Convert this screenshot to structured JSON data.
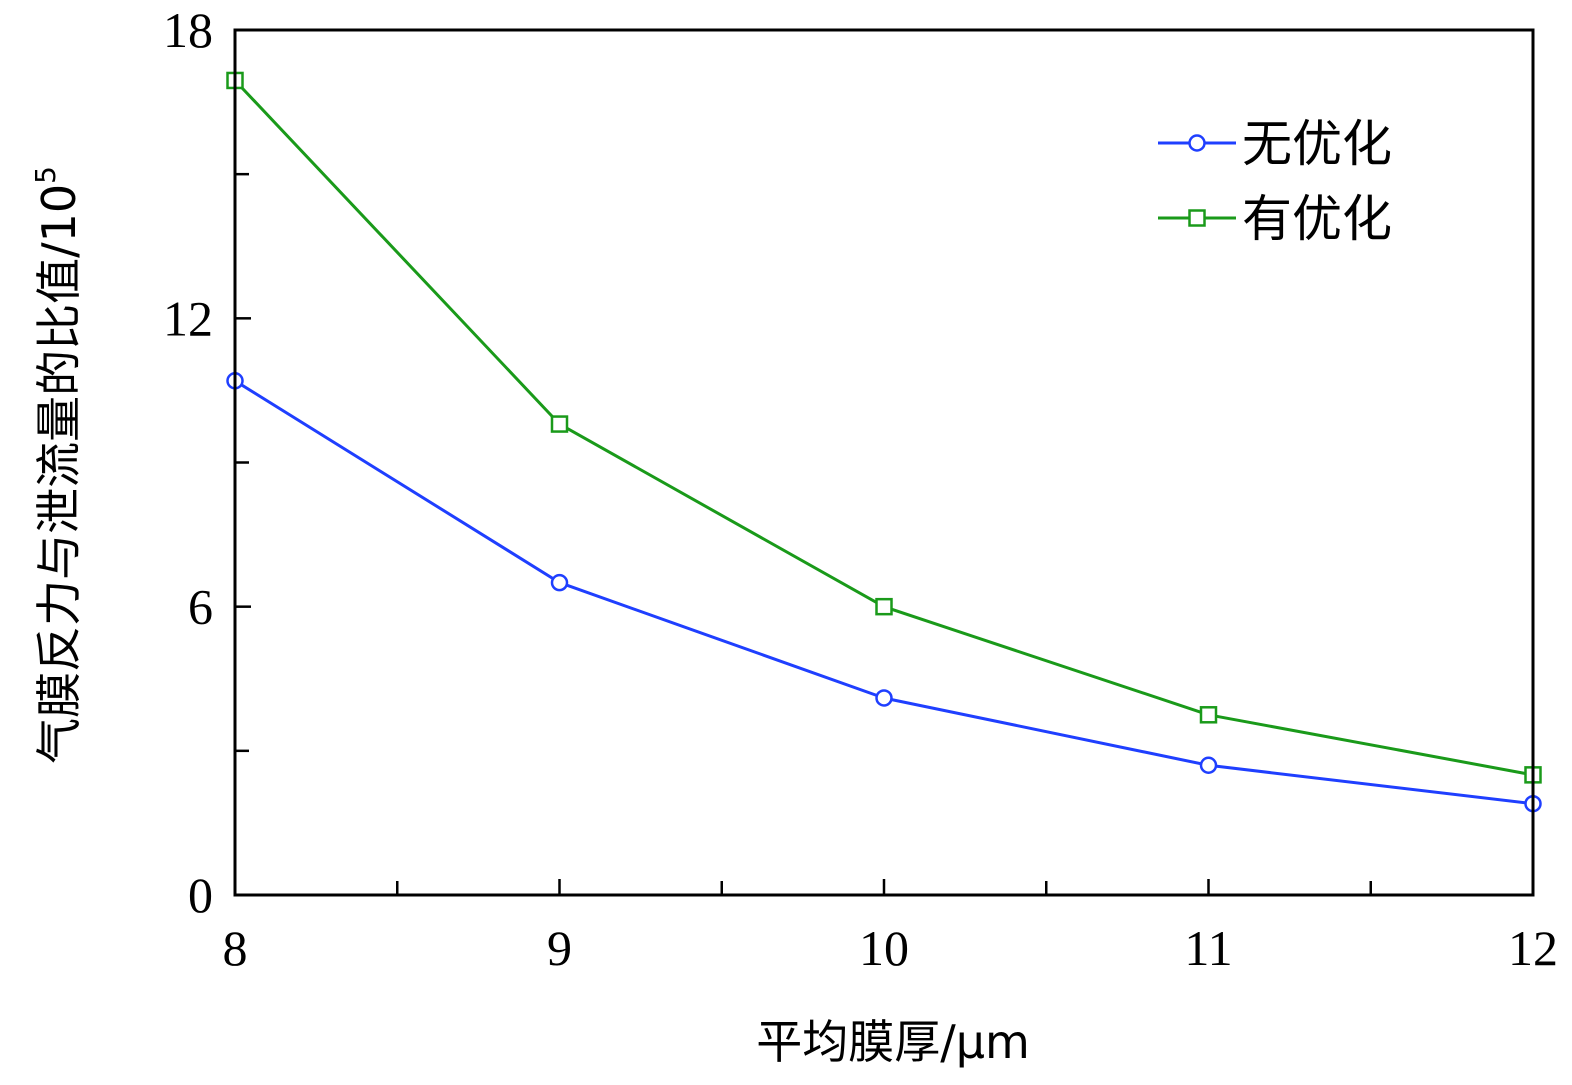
{
  "chart_data": {
    "type": "line",
    "xlabel": "平均膜厚/μm",
    "ylabel": "气膜反力与泄流量的比值/10",
    "ylabel_exponent": "5",
    "xlim": [
      8,
      12
    ],
    "ylim": [
      0,
      18
    ],
    "xticks": [
      8,
      9,
      10,
      11,
      12
    ],
    "yticks": [
      0,
      6,
      12,
      18
    ],
    "grid": false,
    "legend": "top-right",
    "series": [
      {
        "name": "无优化",
        "color": "#1f3fff",
        "marker": "circle",
        "x": [
          8,
          9,
          10,
          11,
          12
        ],
        "y": [
          10.7,
          6.5,
          4.1,
          2.7,
          1.9
        ]
      },
      {
        "name": "有优化",
        "color": "#1a9a1a",
        "marker": "square",
        "x": [
          8,
          9,
          10,
          11,
          12
        ],
        "y": [
          16.95,
          9.8,
          6.0,
          3.75,
          2.5
        ]
      }
    ]
  }
}
